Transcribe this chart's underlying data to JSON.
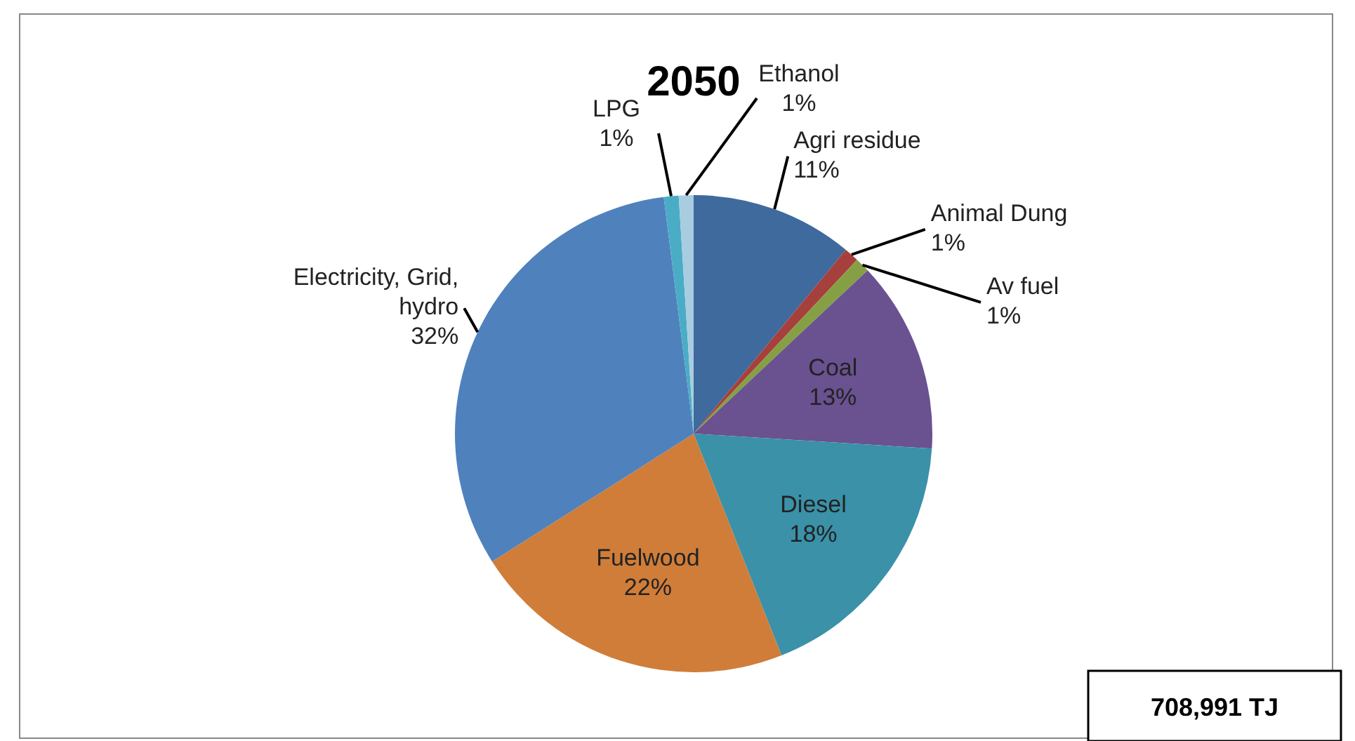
{
  "chart_data": {
    "type": "pie",
    "title": "2050",
    "categories": [
      "Agri residue",
      "Animal Dung",
      "Av fuel",
      "Coal",
      "Diesel",
      "Fuelwood",
      "Electricity, Grid, hydro",
      "LPG",
      "Ethanol"
    ],
    "values": [
      11,
      1,
      1,
      13,
      18,
      22,
      32,
      1,
      1
    ],
    "colors": [
      "#3f6a9e",
      "#a6403c",
      "#85a044",
      "#6a5190",
      "#3a91a8",
      "#d07d39",
      "#4f81bd",
      "#4bacc6",
      "#a8cde0"
    ],
    "annotations": [
      "708,991 TJ"
    ],
    "value_labels": [
      "11%",
      "1%",
      "1%",
      "13%",
      "18%",
      "22%",
      "32%",
      "1%",
      "1%"
    ]
  }
}
